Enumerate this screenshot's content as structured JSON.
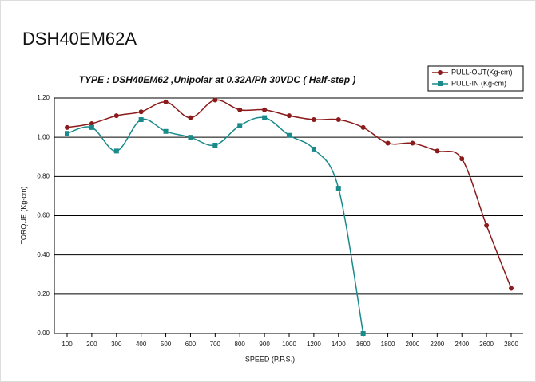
{
  "header": {
    "title": "DSH40EM62A"
  },
  "chart_data": {
    "type": "line",
    "title": "TYPE : DSH40EM62 ,Unipolar at 0.32A/Ph 30VDC  ( Half-step )",
    "x_label": "SPEED (P.P.S.)",
    "y_label": "TORQUE (Kg-cm)",
    "categories": [
      "100",
      "200",
      "300",
      "400",
      "500",
      "600",
      "700",
      "800",
      "900",
      "1000",
      "1200",
      "1400",
      "1600",
      "1800",
      "2000",
      "2200",
      "2400",
      "2600",
      "2800"
    ],
    "series": [
      {
        "name": "PULL-OUT(Kg-cm)",
        "color": "#8b1a1a",
        "marker": "circle",
        "values": [
          1.05,
          1.07,
          1.11,
          1.13,
          1.18,
          1.1,
          1.19,
          1.14,
          1.14,
          1.11,
          1.09,
          1.09,
          1.05,
          0.97,
          0.97,
          0.93,
          0.89,
          0.55,
          0.23
        ]
      },
      {
        "name": "PULL-IN  (Kg-cm)",
        "color": "#1a8a8a",
        "marker": "square",
        "values": [
          1.02,
          1.05,
          0.93,
          1.09,
          1.03,
          1.0,
          0.96,
          1.06,
          1.1,
          1.01,
          0.94,
          0.74,
          0.0,
          null,
          null,
          null,
          null,
          null,
          null
        ]
      }
    ],
    "ylim": [
      0,
      1.2
    ],
    "yticks": [
      {
        "value": 0,
        "label": "0.00"
      },
      {
        "value": 0.2,
        "label": "0.20"
      },
      {
        "value": 0.4,
        "label": "0.40"
      },
      {
        "value": 0.6,
        "label": "0.60"
      },
      {
        "value": 0.8,
        "label": "0.80"
      },
      {
        "value": 1,
        "label": "1.00"
      },
      {
        "value": 1.2,
        "label": "1.20"
      }
    ],
    "grid": true,
    "legend": "top-right"
  }
}
